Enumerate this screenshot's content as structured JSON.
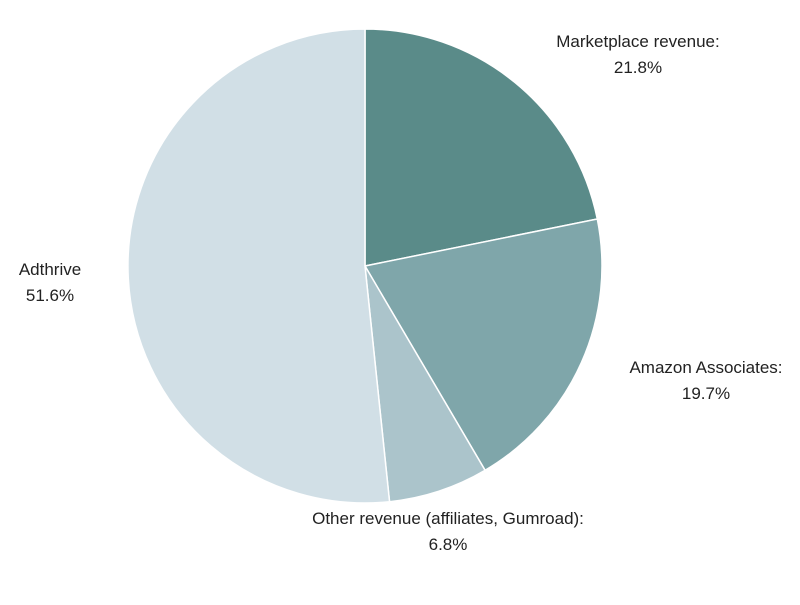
{
  "chart_data": {
    "type": "pie",
    "title": "",
    "start_angle_deg": 0,
    "direction": "clockwise",
    "slices": [
      {
        "label": "Marketplace revenue:",
        "value": 21.8,
        "value_label": "21.8%",
        "color": "#5a8b89"
      },
      {
        "label": "Amazon Associates:",
        "value": 19.7,
        "value_label": "19.7%",
        "color": "#7fa6aa"
      },
      {
        "label": "Other revenue (affiliates, Gumroad):",
        "value": 6.8,
        "value_label": "6.8%",
        "color": "#abc4cb"
      },
      {
        "label": "Adthrive",
        "value": 51.6,
        "value_label": "51.6%",
        "color": "#d1dfe6"
      }
    ]
  }
}
